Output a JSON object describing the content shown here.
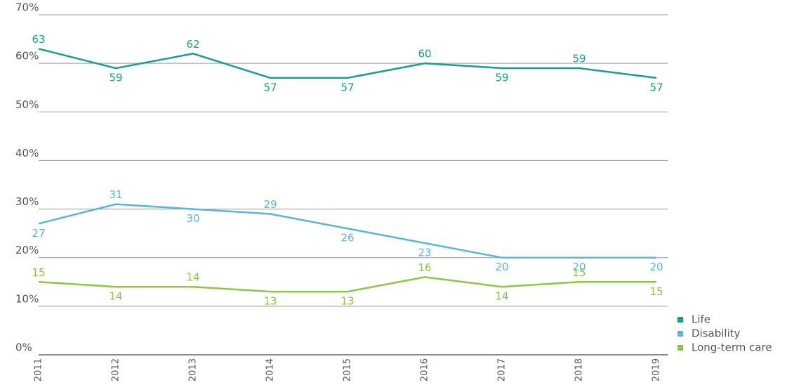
{
  "chart_data": {
    "type": "line",
    "categories": [
      "2011",
      "2012",
      "2013",
      "2014",
      "2015",
      "2016",
      "2017",
      "2018",
      "2019"
    ],
    "series": [
      {
        "name": "Life",
        "color": "#16a08a",
        "values": [
          63,
          59,
          62,
          57,
          57,
          60,
          59,
          59,
          57
        ]
      },
      {
        "name": "Disability",
        "color": "#5ab7d9",
        "values": [
          27,
          31,
          30,
          29,
          26,
          23,
          20,
          20,
          20
        ]
      },
      {
        "name": "Long-term care",
        "color": "#8dc63f",
        "values": [
          15,
          14,
          14,
          13,
          13,
          16,
          14,
          15,
          15
        ]
      }
    ],
    "ylim": [
      0,
      70
    ],
    "yticks": [
      {
        "value": 0,
        "label": "0%"
      },
      {
        "value": 10,
        "label": "10%"
      },
      {
        "value": 20,
        "label": "20%"
      },
      {
        "value": 30,
        "label": "30%"
      },
      {
        "value": 40,
        "label": "40%"
      },
      {
        "value": 50,
        "label": "50%"
      },
      {
        "value": 60,
        "label": "60%"
      },
      {
        "value": 70,
        "label": "70%"
      }
    ],
    "grid": true,
    "legend": "bottom-right"
  }
}
